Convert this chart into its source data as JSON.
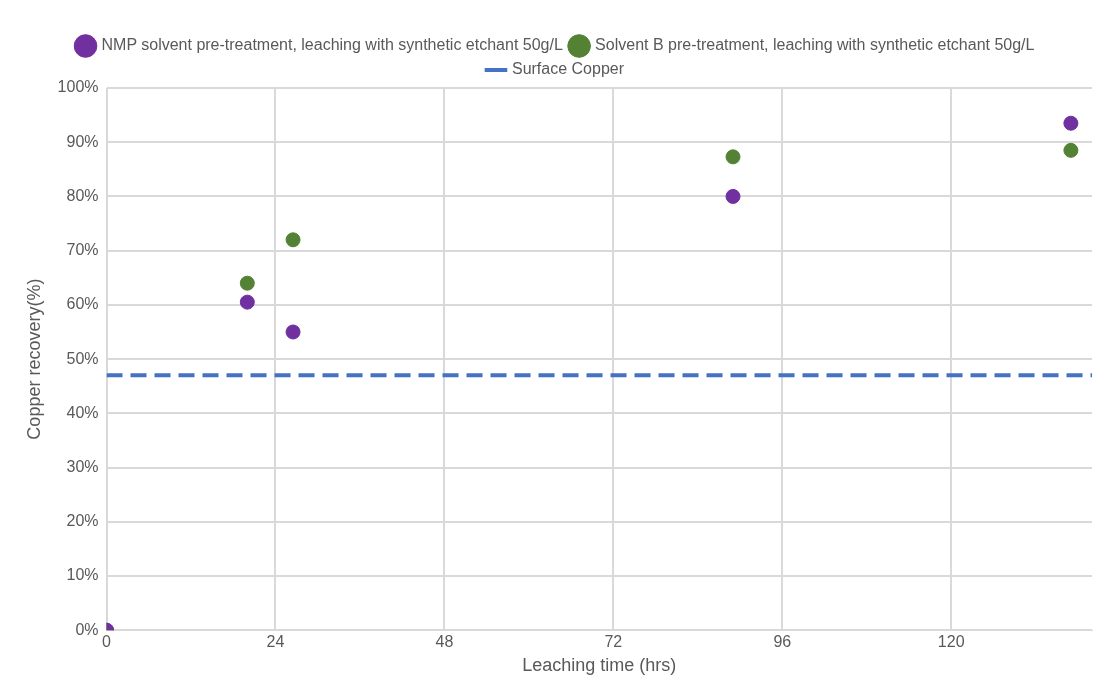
{
  "chart_data": {
    "type": "scatter",
    "xlabel": "Leaching time (hrs)",
    "ylabel": "Copper recovery(%)",
    "series": [
      {
        "name": "NMP solvent pre-treatment, leaching with synthetic etchant 50g/L",
        "color": "#7030a0",
        "x": [
          0,
          20,
          26.5,
          89,
          137
        ],
        "values": [
          0,
          60.5,
          55,
          80,
          93.5
        ]
      },
      {
        "name": "Solvent B pre-treatment, leaching with synthetic etchant 50g/L",
        "color": "#548235",
        "x": [
          0,
          20,
          26.5,
          89,
          137
        ],
        "values": [
          0,
          64,
          72,
          87.3,
          88.5
        ]
      }
    ],
    "ref_lines": [
      {
        "axis": "y",
        "value": 47,
        "label": "Surface Copper",
        "color": "#4472c4",
        "line_style": "dashed"
      }
    ],
    "xlim": [
      0,
      140
    ],
    "xticks": [
      0,
      24,
      48,
      72,
      96,
      120
    ],
    "ylim": [
      0,
      100
    ],
    "yticks": [
      {
        "value": 0,
        "label": "0%"
      },
      {
        "value": 10,
        "label": "10%"
      },
      {
        "value": 20,
        "label": "20%"
      },
      {
        "value": 30,
        "label": "30%"
      },
      {
        "value": 40,
        "label": "40%"
      },
      {
        "value": 50,
        "label": "50%"
      },
      {
        "value": 60,
        "label": "60%"
      },
      {
        "value": 70,
        "label": "70%"
      },
      {
        "value": 80,
        "label": "80%"
      },
      {
        "value": 90,
        "label": "90%"
      },
      {
        "value": 100,
        "label": "100%"
      }
    ],
    "grid": true,
    "legend": "top",
    "marker": "circle"
  }
}
